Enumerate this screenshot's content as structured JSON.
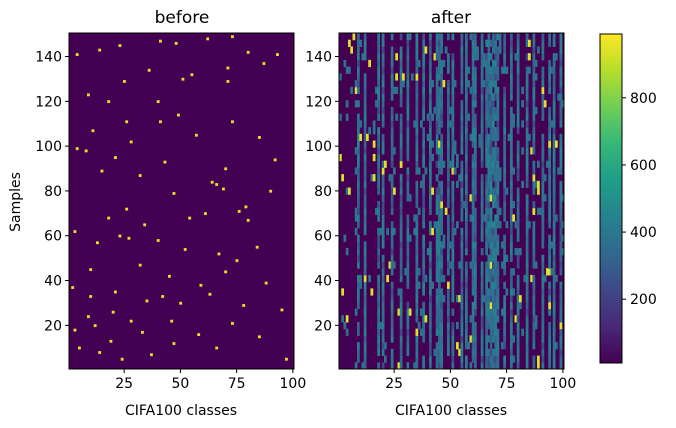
{
  "chart_data": [
    {
      "type": "heatmap",
      "title": "before",
      "xlabel": "CIFA100 classes",
      "ylabel": "Samples",
      "xlim": [
        1,
        100
      ],
      "ylim": [
        1,
        150
      ],
      "xticks": [
        25,
        50,
        75,
        100
      ],
      "yticks": [
        20,
        40,
        60,
        80,
        100,
        120,
        140
      ],
      "n_classes": 100,
      "n_samples": 150,
      "background_value": 0,
      "hot_cells": [
        {
          "x": 62,
          "y": 148
        },
        {
          "x": 73,
          "y": 149
        },
        {
          "x": 48,
          "y": 146
        },
        {
          "x": 4,
          "y": 141
        },
        {
          "x": 23,
          "y": 145
        },
        {
          "x": 41,
          "y": 147
        },
        {
          "x": 80,
          "y": 142
        },
        {
          "x": 93,
          "y": 141
        },
        {
          "x": 14,
          "y": 143
        },
        {
          "x": 87,
          "y": 137
        },
        {
          "x": 71,
          "y": 135
        },
        {
          "x": 55,
          "y": 132
        },
        {
          "x": 36,
          "y": 134
        },
        {
          "x": 51,
          "y": 130
        },
        {
          "x": 25,
          "y": 129
        },
        {
          "x": 71,
          "y": 129
        },
        {
          "x": 9,
          "y": 123
        },
        {
          "x": 40,
          "y": 120
        },
        {
          "x": 18,
          "y": 120
        },
        {
          "x": 49,
          "y": 114
        },
        {
          "x": 26,
          "y": 111
        },
        {
          "x": 41,
          "y": 111
        },
        {
          "x": 73,
          "y": 111
        },
        {
          "x": 11,
          "y": 107
        },
        {
          "x": 57,
          "y": 105
        },
        {
          "x": 85,
          "y": 104
        },
        {
          "x": 28,
          "y": 102
        },
        {
          "x": 4,
          "y": 99
        },
        {
          "x": 8,
          "y": 98
        },
        {
          "x": 21,
          "y": 95
        },
        {
          "x": 92,
          "y": 94
        },
        {
          "x": 43,
          "y": 93
        },
        {
          "x": 70,
          "y": 90
        },
        {
          "x": 15,
          "y": 89
        },
        {
          "x": 32,
          "y": 87
        },
        {
          "x": 64,
          "y": 84
        },
        {
          "x": 66,
          "y": 83
        },
        {
          "x": 69,
          "y": 81
        },
        {
          "x": 47,
          "y": 79
        },
        {
          "x": 90,
          "y": 80
        },
        {
          "x": 79,
          "y": 73
        },
        {
          "x": 26,
          "y": 72
        },
        {
          "x": 61,
          "y": 70
        },
        {
          "x": 76,
          "y": 71
        },
        {
          "x": 54,
          "y": 68
        },
        {
          "x": 18,
          "y": 68
        },
        {
          "x": 80,
          "y": 67
        },
        {
          "x": 34,
          "y": 65
        },
        {
          "x": 3,
          "y": 62
        },
        {
          "x": 23,
          "y": 60
        },
        {
          "x": 27,
          "y": 59
        },
        {
          "x": 13,
          "y": 57
        },
        {
          "x": 40,
          "y": 58
        },
        {
          "x": 52,
          "y": 54
        },
        {
          "x": 67,
          "y": 52
        },
        {
          "x": 84,
          "y": 55
        },
        {
          "x": 75,
          "y": 49
        },
        {
          "x": 32,
          "y": 47
        },
        {
          "x": 10,
          "y": 45
        },
        {
          "x": 70,
          "y": 44
        },
        {
          "x": 45,
          "y": 42
        },
        {
          "x": 2,
          "y": 37
        },
        {
          "x": 59,
          "y": 38
        },
        {
          "x": 88,
          "y": 39
        },
        {
          "x": 21,
          "y": 35
        },
        {
          "x": 10,
          "y": 33
        },
        {
          "x": 42,
          "y": 33
        },
        {
          "x": 63,
          "y": 34
        },
        {
          "x": 35,
          "y": 31
        },
        {
          "x": 50,
          "y": 30
        },
        {
          "x": 78,
          "y": 29
        },
        {
          "x": 95,
          "y": 27
        },
        {
          "x": 20,
          "y": 26
        },
        {
          "x": 9,
          "y": 24
        },
        {
          "x": 46,
          "y": 22
        },
        {
          "x": 28,
          "y": 22
        },
        {
          "x": 73,
          "y": 21
        },
        {
          "x": 12,
          "y": 20
        },
        {
          "x": 3,
          "y": 18
        },
        {
          "x": 33,
          "y": 17
        },
        {
          "x": 58,
          "y": 16
        },
        {
          "x": 85,
          "y": 15
        },
        {
          "x": 19,
          "y": 13
        },
        {
          "x": 47,
          "y": 12
        },
        {
          "x": 5,
          "y": 10
        },
        {
          "x": 66,
          "y": 10
        },
        {
          "x": 14,
          "y": 8
        },
        {
          "x": 37,
          "y": 7
        },
        {
          "x": 24,
          "y": 5
        },
        {
          "x": 97,
          "y": 5
        }
      ],
      "hot_value": 960,
      "colormap": "viridis",
      "clim": [
        0,
        1000
      ]
    },
    {
      "type": "heatmap",
      "title": "after",
      "xlabel": "CIFA100 classes",
      "ylabel": "",
      "xlim": [
        1,
        100
      ],
      "ylim": [
        1,
        150
      ],
      "xticks": [
        25,
        50,
        75,
        100
      ],
      "yticks": [
        20,
        40,
        60,
        80,
        100,
        120,
        140
      ],
      "n_classes": 100,
      "n_samples": 150,
      "pattern": "vertical column stripes of values around 300-450 with bright cells near 950",
      "bright_columns": [
        9,
        12,
        18,
        20,
        24,
        28,
        31,
        35,
        38,
        41,
        44,
        45,
        46,
        49,
        51,
        55,
        57,
        60,
        61,
        64,
        66,
        67,
        68,
        69,
        70,
        71,
        74,
        77,
        80,
        84,
        87,
        91,
        94,
        96,
        99
      ],
      "mid_value": 380,
      "hot_value": 950,
      "colormap": "viridis",
      "clim": [
        0,
        1000
      ]
    }
  ],
  "colorbar": {
    "ticks": [
      200,
      400,
      600,
      800
    ],
    "min": 10,
    "max": 990,
    "colormap": "viridis"
  },
  "colors": {
    "viridis": [
      "#440154",
      "#482878",
      "#3e4989",
      "#31688e",
      "#26828e",
      "#1f9e89",
      "#35b779",
      "#6ece58",
      "#b5de2b",
      "#fde725"
    ]
  }
}
